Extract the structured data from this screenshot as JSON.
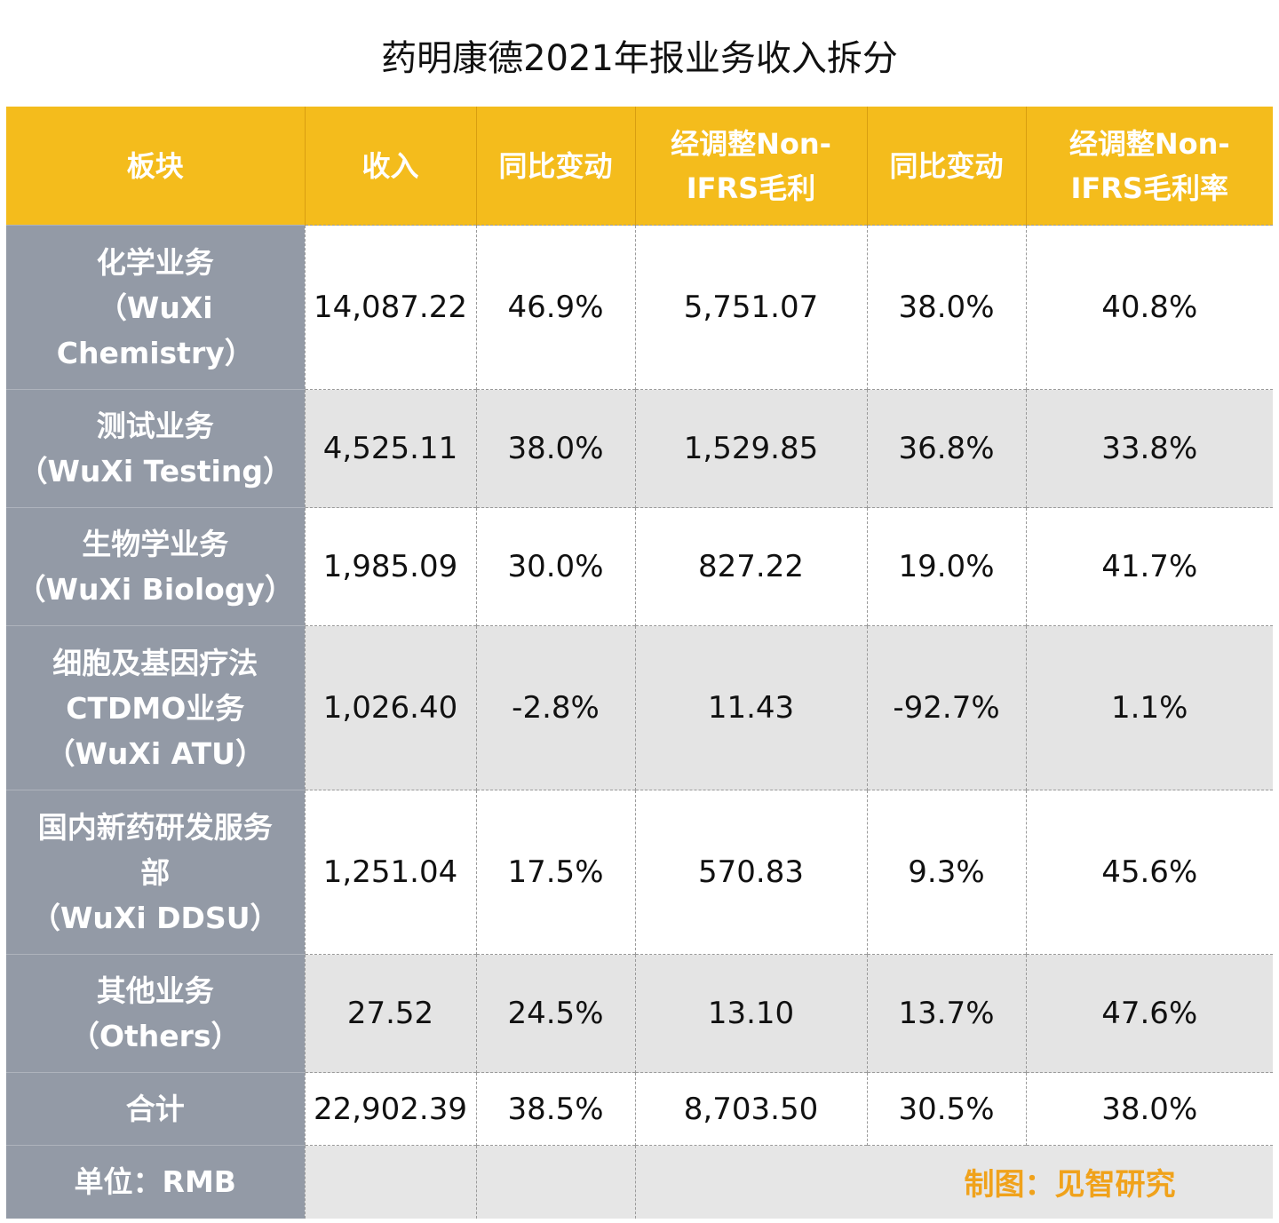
{
  "title": "药明康德2021年报业务收入拆分",
  "headers": [
    [
      "板块"
    ],
    [
      "收入"
    ],
    [
      "同比变动"
    ],
    [
      "经调整Non-",
      "IFRS毛利"
    ],
    [
      "同比变动"
    ],
    [
      "经调整Non-",
      "IFRS毛利率"
    ]
  ],
  "rows": [
    {
      "segment": [
        "化学业务",
        "（WuXi",
        "Chemistry）"
      ],
      "revenue": "14,087.22",
      "revenue_yoy": "46.9%",
      "gross_profit": "5,751.07",
      "gross_profit_yoy": "38.0%",
      "gross_margin": "40.8%"
    },
    {
      "segment": [
        "测试业务",
        "（WuXi Testing）"
      ],
      "revenue": "4,525.11",
      "revenue_yoy": "38.0%",
      "gross_profit": "1,529.85",
      "gross_profit_yoy": "36.8%",
      "gross_margin": "33.8%"
    },
    {
      "segment": [
        "生物学业务",
        "（WuXi Biology）"
      ],
      "revenue": "1,985.09",
      "revenue_yoy": "30.0%",
      "gross_profit": "827.22",
      "gross_profit_yoy": "19.0%",
      "gross_margin": "41.7%"
    },
    {
      "segment": [
        "细胞及基因疗法",
        "CTDMO业务",
        "（WuXi ATU）"
      ],
      "revenue": "1,026.40",
      "revenue_yoy": "-2.8%",
      "gross_profit": "11.43",
      "gross_profit_yoy": "-92.7%",
      "gross_margin": "1.1%"
    },
    {
      "segment": [
        "国内新药研发服务",
        "部",
        "（WuXi DDSU）"
      ],
      "revenue": "1,251.04",
      "revenue_yoy": "17.5%",
      "gross_profit": "570.83",
      "gross_profit_yoy": "9.3%",
      "gross_margin": "45.6%"
    },
    {
      "segment": [
        "其他业务",
        "（Others）"
      ],
      "revenue": "27.52",
      "revenue_yoy": "24.5%",
      "gross_profit": "13.10",
      "gross_profit_yoy": "13.7%",
      "gross_margin": "47.6%"
    },
    {
      "segment": [
        "合计"
      ],
      "revenue": "22,902.39",
      "revenue_yoy": "38.5%",
      "gross_profit": "8,703.50",
      "gross_profit_yoy": "30.5%",
      "gross_margin": "38.0%"
    }
  ],
  "footer": {
    "unit": "单位：RMB",
    "credit": "制图：见智研究"
  },
  "colors": {
    "header_bg": "#f4bc1c",
    "segment_bg": "#939aa6",
    "stripe_bg": "#e4e4e4",
    "credit_text": "#f0a21b"
  }
}
